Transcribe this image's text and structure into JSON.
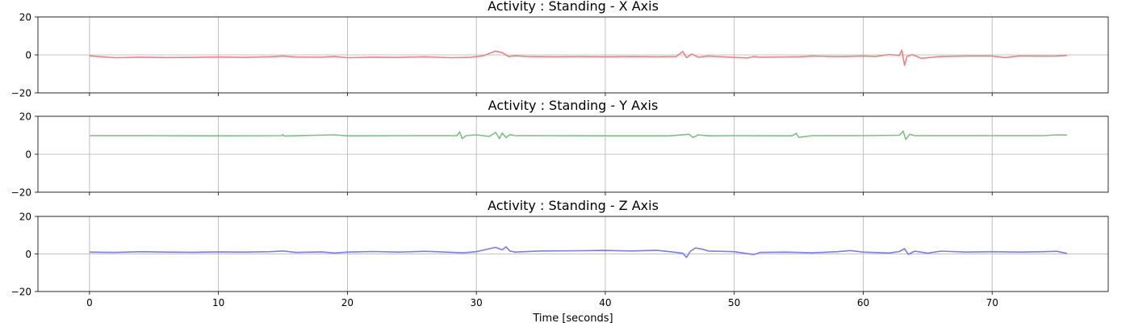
{
  "chart_data": [
    {
      "type": "line",
      "title": "Activity : Standing - X Axis",
      "xlabel": "",
      "ylabel": "",
      "xlim": [
        -4,
        79
      ],
      "ylim": [
        -20,
        20
      ],
      "xticks": [
        "0",
        "10",
        "20",
        "30",
        "40",
        "50",
        "60",
        "70"
      ],
      "yticks": [
        "20",
        "0",
        "−20"
      ],
      "grid": true,
      "color": "#f08080",
      "series": [
        {
          "x": [
            0,
            2,
            4,
            6,
            8,
            10,
            12,
            14,
            15,
            16,
            18,
            19,
            20,
            22,
            24,
            26,
            28,
            29.5,
            30.5,
            31,
            31.5,
            32,
            32.5,
            33,
            34,
            36,
            38,
            40,
            42,
            44,
            45.5,
            46,
            46.3,
            46.7,
            47.2,
            48,
            50,
            51,
            51.5,
            52,
            54,
            55,
            56,
            58,
            60,
            61,
            62,
            62.8,
            63,
            63.2,
            63.4,
            63.8,
            64.5,
            66,
            68,
            70,
            71,
            72,
            74,
            75,
            75.8
          ],
          "y": [
            -0.5,
            -1.5,
            -1.2,
            -1.4,
            -1.3,
            -1.1,
            -1.3,
            -1.0,
            -0.6,
            -1.1,
            -1.2,
            -0.8,
            -1.5,
            -1.2,
            -1.3,
            -1.0,
            -1.5,
            -1.3,
            -0.5,
            0.8,
            2.0,
            1.2,
            -0.8,
            -0.5,
            -0.8,
            -1.0,
            -0.9,
            -1.0,
            -0.8,
            -1.0,
            -0.8,
            1.8,
            -1.5,
            0.5,
            -1.2,
            -0.6,
            -1.3,
            -1.6,
            -0.9,
            -1.2,
            -1.1,
            -1.0,
            -0.6,
            -0.9,
            -0.6,
            -0.8,
            0.2,
            -0.3,
            2.5,
            -5.5,
            -0.8,
            0.2,
            -1.8,
            -0.8,
            -0.6,
            -0.6,
            -1.4,
            -0.6,
            -0.7,
            -0.6,
            -0.3
          ]
        }
      ]
    },
    {
      "type": "line",
      "title": "Activity : Standing - Y Axis",
      "xlabel": "",
      "ylabel": "",
      "xlim": [
        -4,
        79
      ],
      "ylim": [
        -20,
        20
      ],
      "xticks": [
        "0",
        "10",
        "20",
        "30",
        "40",
        "50",
        "60",
        "70"
      ],
      "yticks": [
        "20",
        "0",
        "−20"
      ],
      "grid": true,
      "color": "#7cc27c",
      "series": [
        {
          "x": [
            0,
            5,
            10,
            14.9,
            15,
            15.1,
            19,
            20,
            25,
            28.5,
            28.7,
            28.9,
            29.2,
            30,
            31,
            31.5,
            31.8,
            32,
            32.3,
            32.6,
            33,
            35,
            40,
            45,
            46.5,
            46.8,
            47.2,
            48,
            50,
            54.5,
            54.8,
            55,
            56,
            60,
            62.8,
            63.1,
            63.3,
            63.6,
            64,
            68,
            72,
            74,
            75,
            75.8
          ],
          "y": [
            9.8,
            9.8,
            9.7,
            9.8,
            10.4,
            9.6,
            10.2,
            9.7,
            9.8,
            9.8,
            11.8,
            8.2,
            9.8,
            10.2,
            9.4,
            11.5,
            8.2,
            11.2,
            8.8,
            10.3,
            9.8,
            9.8,
            9.7,
            9.7,
            10.5,
            8.8,
            10.2,
            9.7,
            9.8,
            9.7,
            11.0,
            8.9,
            9.8,
            9.8,
            10.0,
            12.2,
            7.8,
            10.5,
            9.8,
            9.8,
            9.8,
            9.8,
            10.2,
            10.1
          ]
        }
      ]
    },
    {
      "type": "line",
      "title": "Activity : Standing - Z Axis",
      "xlabel": "Time [seconds]",
      "ylabel": "",
      "xlim": [
        -4,
        79
      ],
      "ylim": [
        -20,
        20
      ],
      "xticks": [
        "0",
        "10",
        "20",
        "30",
        "40",
        "50",
        "60",
        "70"
      ],
      "yticks": [
        "20",
        "0",
        "−20"
      ],
      "grid": true,
      "color": "#7b7bef",
      "series": [
        {
          "x": [
            0,
            2,
            4,
            6,
            8,
            10,
            12,
            14,
            15,
            16,
            18,
            19,
            20,
            22,
            24,
            26,
            28,
            29,
            30,
            31,
            31.5,
            32,
            32.3,
            32.6,
            33,
            35,
            38,
            40,
            42,
            44,
            45.5,
            46,
            46.3,
            46.6,
            47,
            47.5,
            48,
            50,
            51.5,
            52,
            54,
            56,
            58,
            59,
            60,
            62,
            62.8,
            63.2,
            63.5,
            64,
            65,
            66,
            68,
            70,
            72,
            74,
            75,
            75.8
          ],
          "y": [
            1.0,
            0.8,
            1.2,
            1.0,
            0.9,
            1.1,
            1.0,
            1.2,
            1.6,
            0.8,
            1.1,
            0.5,
            1.0,
            1.3,
            1.0,
            1.4,
            0.9,
            0.6,
            1.2,
            2.8,
            3.5,
            2.2,
            3.8,
            1.6,
            1.0,
            1.6,
            1.7,
            1.9,
            1.6,
            2.0,
            0.8,
            0.4,
            -1.8,
            1.5,
            3.2,
            2.6,
            1.6,
            1.2,
            -0.3,
            0.8,
            1.0,
            0.6,
            1.2,
            1.8,
            1.0,
            0.5,
            1.3,
            2.8,
            -0.2,
            1.5,
            0.4,
            1.5,
            1.0,
            1.2,
            1.0,
            1.2,
            1.4,
            0.3
          ]
        }
      ]
    }
  ]
}
